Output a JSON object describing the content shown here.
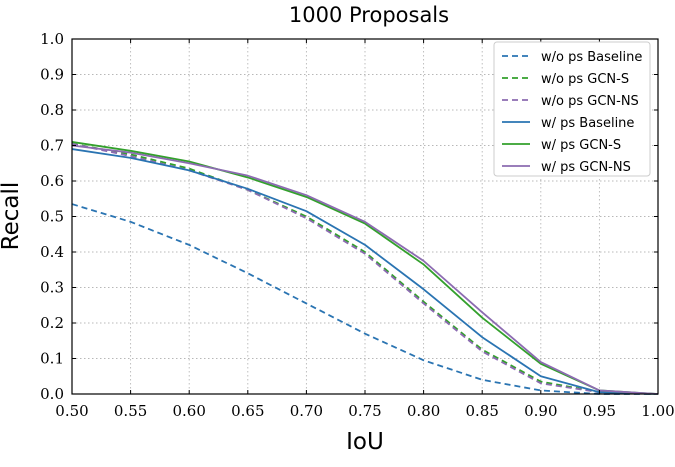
{
  "chart_data": {
    "type": "line",
    "title": "1000 Proposals",
    "xlabel": "IoU",
    "ylabel": "Recall",
    "xlim": [
      0.5,
      1.0
    ],
    "ylim": [
      0.0,
      1.0
    ],
    "grid": true,
    "grid_style": "dotted",
    "legend_position": "top-right",
    "x": [
      0.5,
      0.55,
      0.6,
      0.65,
      0.7,
      0.75,
      0.8,
      0.85,
      0.9,
      0.95,
      1.0
    ],
    "x_ticks": [
      "0.50",
      "0.55",
      "0.60",
      "0.65",
      "0.70",
      "0.75",
      "0.80",
      "0.85",
      "0.90",
      "0.95",
      "1.00"
    ],
    "y_ticks": [
      "0.0",
      "0.1",
      "0.2",
      "0.3",
      "0.4",
      "0.5",
      "0.6",
      "0.7",
      "0.8",
      "0.9",
      "1.0"
    ],
    "series": [
      {
        "name": "w/o ps Baseline",
        "color": "#2a74b2",
        "style": "dashed",
        "values": [
          0.535,
          0.485,
          0.42,
          0.34,
          0.255,
          0.17,
          0.095,
          0.04,
          0.01,
          0.0,
          0.0
        ]
      },
      {
        "name": "w/o ps GCN-S",
        "color": "#33a02c",
        "style": "dashed",
        "values": [
          0.705,
          0.675,
          0.635,
          0.575,
          0.5,
          0.4,
          0.26,
          0.125,
          0.035,
          0.005,
          0.0
        ]
      },
      {
        "name": "w/o ps GCN-NS",
        "color": "#8c6bb1",
        "style": "dashed",
        "values": [
          0.705,
          0.67,
          0.63,
          0.575,
          0.495,
          0.395,
          0.255,
          0.12,
          0.03,
          0.005,
          0.0
        ]
      },
      {
        "name": "w/ ps Baseline",
        "color": "#2a74b2",
        "style": "solid",
        "values": [
          0.69,
          0.665,
          0.63,
          0.578,
          0.515,
          0.42,
          0.295,
          0.16,
          0.05,
          0.005,
          0.0
        ]
      },
      {
        "name": "w/ ps GCN-S",
        "color": "#33a02c",
        "style": "solid",
        "values": [
          0.71,
          0.685,
          0.655,
          0.61,
          0.555,
          0.48,
          0.365,
          0.215,
          0.085,
          0.01,
          0.0
        ]
      },
      {
        "name": "w/ ps GCN-NS",
        "color": "#8c6bb1",
        "style": "solid",
        "values": [
          0.7,
          0.68,
          0.65,
          0.615,
          0.56,
          0.485,
          0.375,
          0.23,
          0.09,
          0.01,
          0.0
        ]
      }
    ]
  }
}
